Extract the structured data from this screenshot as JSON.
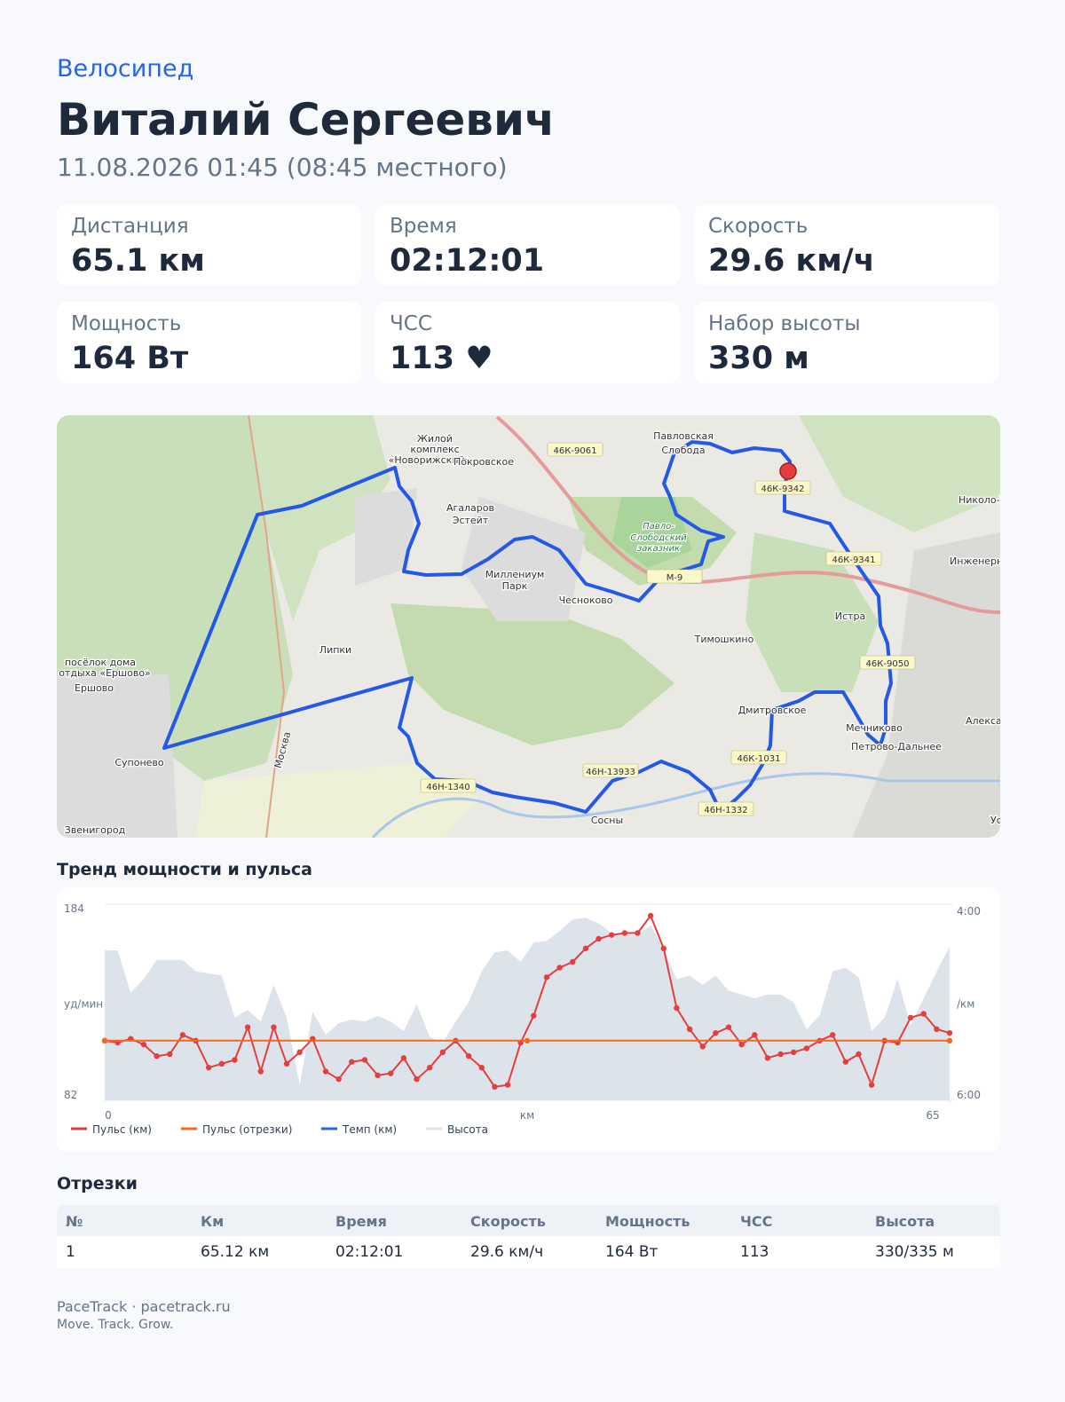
{
  "header": {
    "sport": "Велосипед",
    "name": "Виталий Сергеевич",
    "datetime": "11.08.2026 01:45 (08:45 местного)"
  },
  "stats": [
    {
      "label": "Дистанция",
      "value": "65.1 км"
    },
    {
      "label": "Время",
      "value": "02:12:01"
    },
    {
      "label": "Скорость",
      "value": "29.6 км/ч"
    },
    {
      "label": "Мощность",
      "value": "164 Вт"
    },
    {
      "label": "ЧСС",
      "value": "113 ♥"
    },
    {
      "label": "Набор высоты",
      "value": "330 м"
    }
  ],
  "map": {
    "labels": [
      "Жилой",
      "комплекс",
      "«Новорижский»",
      "Покровское",
      "46К-9061",
      "Павловская",
      "Слобода",
      "46К-9342",
      "Николо-Ур",
      "Агаларов",
      "Эстейт",
      "Павло-",
      "Слободский",
      "заказник",
      "46К-9341",
      "Инженерны",
      "Миллениум",
      "Парк",
      "Чесноково",
      "М-9",
      "Истра",
      "Тимошкино",
      "посёлок дома",
      "отдыха «Ершово»",
      "Ершово",
      "Липки",
      "46К-9050",
      "Дмитровское",
      "Мечниково",
      "Александ",
      "Петрово-Дальнее",
      "Москва",
      "46К-1031",
      "Супонево",
      "46Н-13933",
      "46Н-1340",
      "Сосны",
      "46Н-1332",
      "Звенигород",
      "Усово"
    ]
  },
  "chart_data": {
    "type": "line",
    "title": "Тренд мощности и пульса",
    "x_label": "км",
    "y_label": "уд/мин",
    "y2_label": "/км",
    "x": [
      0,
      1,
      2,
      3,
      4,
      5,
      6,
      7,
      8,
      9,
      10,
      11,
      12,
      13,
      14,
      15,
      16,
      17,
      18,
      19,
      20,
      21,
      22,
      23,
      24,
      25,
      26,
      27,
      28,
      29,
      30,
      31,
      32,
      33,
      34,
      35,
      36,
      37,
      38,
      39,
      40,
      41,
      42,
      43,
      44,
      45,
      46,
      47,
      48,
      49,
      50,
      51,
      52,
      53,
      54,
      55,
      56,
      57,
      58,
      59,
      60,
      61,
      62,
      63,
      64,
      65
    ],
    "xlim": [
      0,
      65
    ],
    "xticks": [
      0,
      65
    ],
    "ylim": [
      82,
      184
    ],
    "yticks": [
      82,
      184
    ],
    "y2lim": [
      6,
      4
    ],
    "y2ticks": [
      {
        "value": 6,
        "label": "6:00"
      },
      {
        "value": 4,
        "label": "4:00"
      }
    ],
    "grid": true,
    "legend": "bottom-left",
    "series": [
      {
        "name": "Пульс (км)",
        "color": "#e53e3e",
        "kind": "line-markers",
        "values": [
          113,
          112,
          114,
          111,
          105,
          106,
          116,
          113,
          99,
          101,
          103,
          120,
          97,
          120,
          101,
          107,
          114,
          97,
          93,
          102,
          103,
          95,
          96,
          104,
          93,
          99,
          107,
          113,
          105,
          99,
          89,
          90,
          112,
          126,
          146,
          151,
          154,
          161,
          166,
          168,
          169,
          169,
          178,
          161,
          130,
          119,
          110,
          117,
          120,
          111,
          116,
          104,
          106,
          107,
          109,
          113,
          116,
          102,
          106,
          90,
          113,
          112,
          125,
          127,
          119,
          117
        ]
      },
      {
        "name": "Пульс (отрезки)",
        "color": "#f26b1d",
        "kind": "line-markers",
        "x": [
          0,
          32.5,
          65
        ],
        "values": [
          113,
          113,
          113
        ]
      },
      {
        "name": "Темп (км)",
        "color": "#2563eb",
        "kind": "line",
        "axis": "y2",
        "x": [],
        "values": []
      },
      {
        "name": "Высота",
        "color": "#dde3ea",
        "kind": "area",
        "values": [
          160,
          160,
          138,
          145,
          155,
          155,
          155,
          149,
          148,
          147,
          125,
          129,
          123,
          142,
          125,
          90,
          128,
          116,
          122,
          124,
          123,
          126,
          123,
          118,
          132,
          115,
          112,
          123,
          133,
          149,
          159,
          160,
          154,
          164,
          165,
          170,
          176,
          177,
          174,
          169,
          168,
          168,
          173,
          161,
          145,
          147,
          142,
          147,
          139,
          137,
          135,
          137,
          137,
          133,
          119,
          126,
          149,
          151,
          146,
          118,
          125,
          145,
          121,
          135,
          149,
          162
        ]
      }
    ]
  },
  "segments": {
    "title": "Отрезки",
    "columns": [
      "№",
      "Км",
      "Время",
      "Скорость",
      "Мощность",
      "ЧСС",
      "Высота"
    ],
    "rows": [
      [
        "1",
        "65.12 км",
        "02:12:01",
        "29.6 км/ч",
        "164 Вт",
        "113",
        "330/335 м"
      ]
    ]
  },
  "footer": {
    "brand": "PaceTrack · pacetrack.ru",
    "tagline": "Move. Track. Grow."
  }
}
